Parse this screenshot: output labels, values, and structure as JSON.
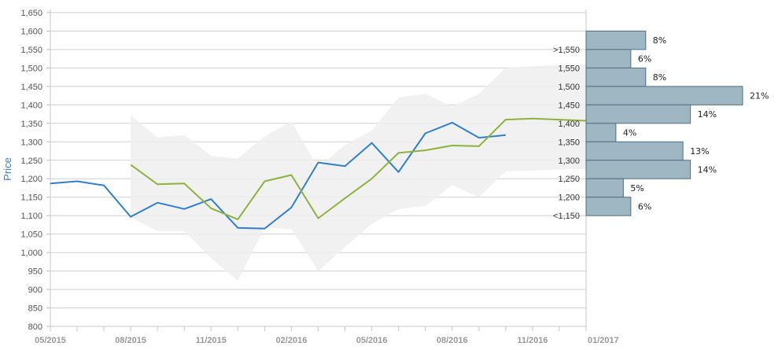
{
  "chart_data": {
    "type": "line",
    "ylabel": "Price",
    "ylim": [
      800,
      1650
    ],
    "y_ticks": [
      "1,650",
      "1,600",
      "1,550",
      "1,500",
      "1,450",
      "1,400",
      "1,350",
      "1,300",
      "1,250",
      "1,200",
      "1,150",
      "1,100",
      "1,050",
      "1,000",
      "950",
      "900",
      "850",
      "800"
    ],
    "x_tick_labels": [
      "05/2015",
      "08/2015",
      "11/2015",
      "02/2016",
      "05/2016",
      "08/2016",
      "11/2016",
      "01/2017"
    ],
    "colors": {
      "actual": "#2f7fd0",
      "forecast": "#8db33c",
      "band": "#eeeeee",
      "histogram_fill": "#9fb6c3",
      "histogram_stroke": "#4f6f80"
    },
    "series": [
      {
        "key": "actual",
        "x": [
          0,
          1,
          2,
          3,
          4,
          5,
          6,
          7,
          8,
          9,
          10,
          11,
          12,
          13,
          14,
          15,
          16,
          17
        ],
        "values": [
          1187,
          1193,
          1182,
          1097,
          1135,
          1118,
          1145,
          1067,
          1065,
          1122,
          1244,
          1234,
          1297,
          1218,
          1323,
          1352,
          1311,
          1318
        ]
      },
      {
        "key": "forecast",
        "x": [
          3,
          4,
          5,
          6,
          7,
          8,
          9,
          10,
          11,
          12,
          13,
          14,
          15,
          16,
          17,
          18,
          19,
          20
        ],
        "values": [
          1238,
          1185,
          1187,
          1120,
          1090,
          1193,
          1210,
          1093,
          1147,
          1200,
          1270,
          1277,
          1290,
          1288,
          1360,
          1363,
          1360,
          1357
        ]
      }
    ],
    "band": {
      "x": [
        3,
        4,
        5,
        6,
        7,
        8,
        9,
        10,
        11,
        12,
        13,
        14,
        15,
        16,
        17,
        18,
        19,
        20
      ],
      "upper": [
        1372,
        1312,
        1318,
        1262,
        1255,
        1315,
        1355,
        1230,
        1292,
        1330,
        1420,
        1430,
        1395,
        1430,
        1500,
        1505,
        1508,
        1510
      ],
      "lower": [
        1096,
        1058,
        1058,
        985,
        923,
        1068,
        1063,
        950,
        1015,
        1078,
        1118,
        1126,
        1183,
        1150,
        1220,
        1222,
        1225,
        1227
      ]
    },
    "histogram": {
      "bins": [
        {
          "label": ">1,550",
          "center": 1575,
          "pct": 8
        },
        {
          "label": "1,550",
          "center": 1525,
          "pct": 6
        },
        {
          "label": "1,500",
          "center": 1475,
          "pct": 8
        },
        {
          "label": "1,450",
          "center": 1425,
          "pct": 21
        },
        {
          "label": "1,400",
          "center": 1375,
          "pct": 14
        },
        {
          "label": "1,350",
          "center": 1325,
          "pct": 4
        },
        {
          "label": "1,300",
          "center": 1275,
          "pct": 13
        },
        {
          "label": "1,250",
          "center": 1225,
          "pct": 14
        },
        {
          "label": "1,200",
          "center": 1175,
          "pct": 5
        },
        {
          "label": "<1,150",
          "center": 1125,
          "pct": 6
        }
      ],
      "pct_labels": [
        "8%",
        "6%",
        "8%",
        "21%",
        "14%",
        "4%",
        "13%",
        "14%",
        "5%",
        "6%"
      ]
    }
  }
}
